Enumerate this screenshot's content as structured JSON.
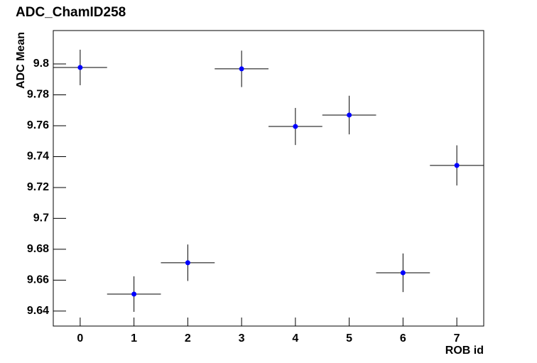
{
  "chart_data": {
    "type": "errorbar",
    "title": "ADC_ChamID258",
    "x_label": "ROB id",
    "y_label": "ADC Mean",
    "x": [
      0,
      1,
      2,
      3,
      4,
      5,
      6,
      7
    ],
    "xerr": [
      0.5,
      0.5,
      0.5,
      0.5,
      0.5,
      0.5,
      0.5,
      0.5
    ],
    "values": [
      9.7977,
      9.651,
      9.6713,
      9.7968,
      9.7595,
      9.7669,
      9.6648,
      9.7343
    ],
    "yerr": [
      0.0115,
      0.0115,
      0.0118,
      0.0118,
      0.012,
      0.0125,
      0.0125,
      0.013
    ],
    "color": "#0000ff",
    "xlim": [
      -0.5,
      7.5
    ],
    "xticks": [
      0,
      1,
      2,
      3,
      4,
      5,
      6,
      7
    ],
    "ylim": [
      9.6303,
      9.8216
    ],
    "yticks": [
      9.64,
      9.66,
      9.68,
      9.7,
      9.72,
      9.74,
      9.76,
      9.78,
      9.8
    ]
  }
}
